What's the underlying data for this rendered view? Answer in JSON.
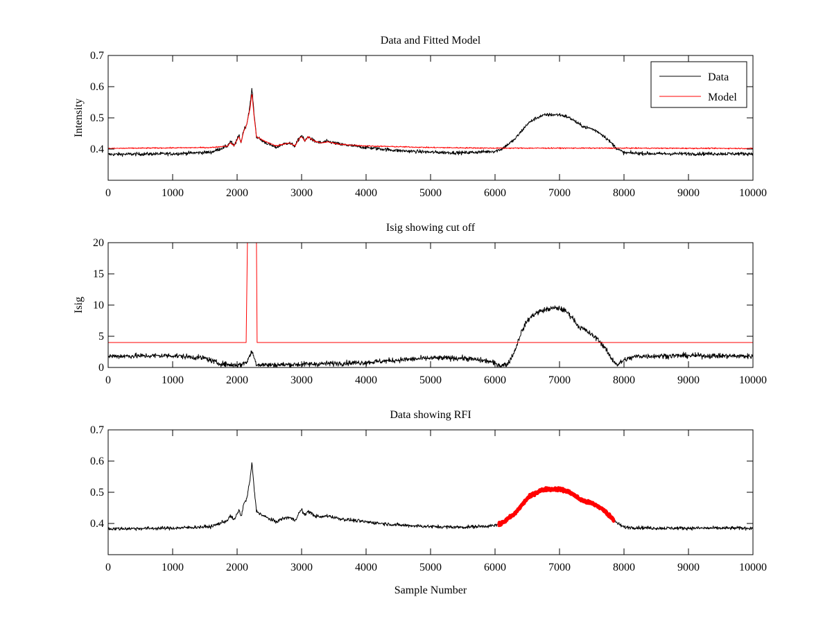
{
  "figure": {
    "background": "#ffffff",
    "line_colors": {
      "data": "#000000",
      "model": "#ff0000",
      "rfi": "#ff0000"
    }
  },
  "chart_data": [
    {
      "type": "line",
      "title": "Data and Fitted Model",
      "xlabel": "",
      "ylabel": "Intensity",
      "xlim": [
        0,
        10000
      ],
      "ylim": [
        0.3,
        0.7
      ],
      "xticks": [
        0,
        1000,
        2000,
        3000,
        4000,
        5000,
        6000,
        7000,
        8000,
        9000,
        10000
      ],
      "yticks": [
        0.4,
        0.5,
        0.6,
        0.7
      ],
      "ytick_labels": [
        "0.4",
        "0.5",
        "0.6",
        "0.7"
      ],
      "grid": false,
      "legend": {
        "position": "top-right",
        "entries": [
          "Data",
          "Model"
        ]
      },
      "series": [
        {
          "name": "Data",
          "color": "#000000",
          "noise": 0.006,
          "x": [
            0,
            1000,
            1600,
            1850,
            1900,
            1950,
            2000,
            2030,
            2060,
            2100,
            2150,
            2200,
            2230,
            2260,
            2300,
            2400,
            2600,
            2700,
            2800,
            2900,
            2950,
            3000,
            3050,
            3100,
            3200,
            3300,
            3400,
            3600,
            4000,
            4500,
            5000,
            5500,
            6000,
            6100,
            6200,
            6300,
            6400,
            6500,
            6600,
            6700,
            6800,
            6900,
            7000,
            7100,
            7200,
            7300,
            7400,
            7500,
            7600,
            7700,
            7800,
            7900,
            8000,
            8500,
            9000,
            10000
          ],
          "y": [
            0.383,
            0.385,
            0.39,
            0.41,
            0.425,
            0.41,
            0.43,
            0.445,
            0.42,
            0.46,
            0.48,
            0.54,
            0.595,
            0.52,
            0.44,
            0.425,
            0.405,
            0.415,
            0.42,
            0.41,
            0.43,
            0.445,
            0.425,
            0.44,
            0.425,
            0.42,
            0.425,
            0.415,
            0.405,
            0.395,
            0.39,
            0.388,
            0.393,
            0.4,
            0.415,
            0.43,
            0.455,
            0.48,
            0.495,
            0.505,
            0.51,
            0.51,
            0.51,
            0.505,
            0.495,
            0.48,
            0.47,
            0.465,
            0.455,
            0.44,
            0.42,
            0.4,
            0.388,
            0.385,
            0.385,
            0.385
          ]
        },
        {
          "name": "Model",
          "color": "#ff0000",
          "noise": 0.002,
          "x": [
            0,
            1600,
            1850,
            1900,
            1950,
            2000,
            2030,
            2060,
            2100,
            2150,
            2200,
            2230,
            2260,
            2300,
            2400,
            2600,
            2700,
            2800,
            2900,
            2950,
            3000,
            3050,
            3100,
            3200,
            3300,
            3400,
            3600,
            4000,
            5000,
            6000,
            8000,
            10000
          ],
          "y": [
            0.402,
            0.405,
            0.41,
            0.42,
            0.41,
            0.43,
            0.44,
            0.42,
            0.455,
            0.48,
            0.53,
            0.58,
            0.51,
            0.44,
            0.428,
            0.41,
            0.415,
            0.42,
            0.41,
            0.43,
            0.44,
            0.425,
            0.44,
            0.425,
            0.42,
            0.423,
            0.415,
            0.41,
            0.405,
            0.403,
            0.403,
            0.402
          ]
        }
      ]
    },
    {
      "type": "line",
      "title": "Isig showing cut off",
      "xlabel": "",
      "ylabel": "Isig",
      "xlim": [
        0,
        10000
      ],
      "ylim": [
        0,
        20
      ],
      "xticks": [
        0,
        1000,
        2000,
        3000,
        4000,
        5000,
        6000,
        7000,
        8000,
        9000,
        10000
      ],
      "yticks": [
        0,
        5,
        10,
        15,
        20
      ],
      "ytick_labels": [
        "0",
        "5",
        "10",
        "15",
        "20"
      ],
      "grid": false,
      "series": [
        {
          "color": "#000000",
          "noise": 0.45,
          "x": [
            0,
            1000,
            1500,
            1700,
            1900,
            2050,
            2150,
            2230,
            2300,
            2500,
            3000,
            4000,
            4500,
            5000,
            5500,
            5900,
            6100,
            6200,
            6300,
            6400,
            6500,
            6600,
            6700,
            6800,
            6900,
            7000,
            7100,
            7200,
            7300,
            7400,
            7500,
            7600,
            7700,
            7800,
            7900,
            8000,
            8200,
            9000,
            10000
          ],
          "y": [
            1.8,
            1.9,
            1.5,
            0.7,
            0.4,
            0.4,
            0.9,
            2.6,
            0.5,
            0.4,
            0.5,
            0.8,
            1.2,
            1.5,
            1.5,
            1.0,
            0.3,
            0.6,
            2.5,
            5.5,
            7.5,
            8.5,
            9.0,
            9.3,
            9.5,
            9.5,
            9.0,
            8.0,
            6.5,
            6.0,
            5.2,
            4.5,
            3.2,
            1.5,
            0.4,
            1.2,
            1.8,
            1.9,
            1.8
          ]
        },
        {
          "color": "#ff0000",
          "noise": 0,
          "x": [
            0,
            2140,
            2160,
            2190,
            2270,
            2300,
            2310,
            10000
          ],
          "y": [
            4.0,
            4.0,
            20.0,
            20.0,
            20.0,
            20.0,
            4.0,
            4.0
          ]
        }
      ]
    },
    {
      "type": "line",
      "title": "Data showing RFI",
      "xlabel": "Sample Number",
      "ylabel": "",
      "xlim": [
        0,
        10000
      ],
      "ylim": [
        0.3,
        0.7
      ],
      "xticks": [
        0,
        1000,
        2000,
        3000,
        4000,
        5000,
        6000,
        7000,
        8000,
        9000,
        10000
      ],
      "yticks": [
        0.4,
        0.5,
        0.6,
        0.7
      ],
      "ytick_labels": [
        "0.4",
        "0.5",
        "0.6",
        "0.7"
      ],
      "grid": false,
      "series": [
        {
          "color": "#000000",
          "noise": 0.006,
          "x": [
            0,
            1000,
            1600,
            1850,
            1900,
            1950,
            2000,
            2030,
            2060,
            2100,
            2150,
            2200,
            2230,
            2260,
            2300,
            2400,
            2600,
            2700,
            2800,
            2900,
            2950,
            3000,
            3050,
            3100,
            3200,
            3300,
            3400,
            3600,
            4000,
            4500,
            5000,
            5500,
            6000,
            6100,
            6200,
            6300,
            6400,
            6500,
            6600,
            6700,
            6800,
            6900,
            7000,
            7100,
            7200,
            7300,
            7400,
            7500,
            7600,
            7700,
            7800,
            7900,
            8000,
            8500,
            9000,
            10000
          ],
          "y": [
            0.383,
            0.385,
            0.39,
            0.41,
            0.425,
            0.41,
            0.43,
            0.445,
            0.42,
            0.46,
            0.48,
            0.54,
            0.595,
            0.52,
            0.44,
            0.425,
            0.405,
            0.415,
            0.42,
            0.41,
            0.43,
            0.445,
            0.425,
            0.44,
            0.425,
            0.42,
            0.425,
            0.415,
            0.405,
            0.395,
            0.39,
            0.388,
            0.393,
            0.4,
            0.415,
            0.43,
            0.455,
            0.48,
            0.495,
            0.505,
            0.51,
            0.51,
            0.51,
            0.505,
            0.495,
            0.48,
            0.47,
            0.465,
            0.455,
            0.44,
            0.42,
            0.4,
            0.388,
            0.385,
            0.385,
            0.385
          ]
        },
        {
          "color": "#ff0000",
          "noise": 0.005,
          "width": 5,
          "x": [
            6050,
            6100,
            6200,
            6300,
            6400,
            6500,
            6600,
            6700,
            6800,
            6900,
            7000,
            7100,
            7200,
            7300,
            7400,
            7500,
            7600,
            7700,
            7800,
            7850
          ],
          "y": [
            0.395,
            0.4,
            0.415,
            0.43,
            0.455,
            0.48,
            0.495,
            0.505,
            0.51,
            0.51,
            0.51,
            0.505,
            0.495,
            0.48,
            0.47,
            0.465,
            0.455,
            0.44,
            0.42,
            0.41
          ]
        }
      ]
    }
  ]
}
